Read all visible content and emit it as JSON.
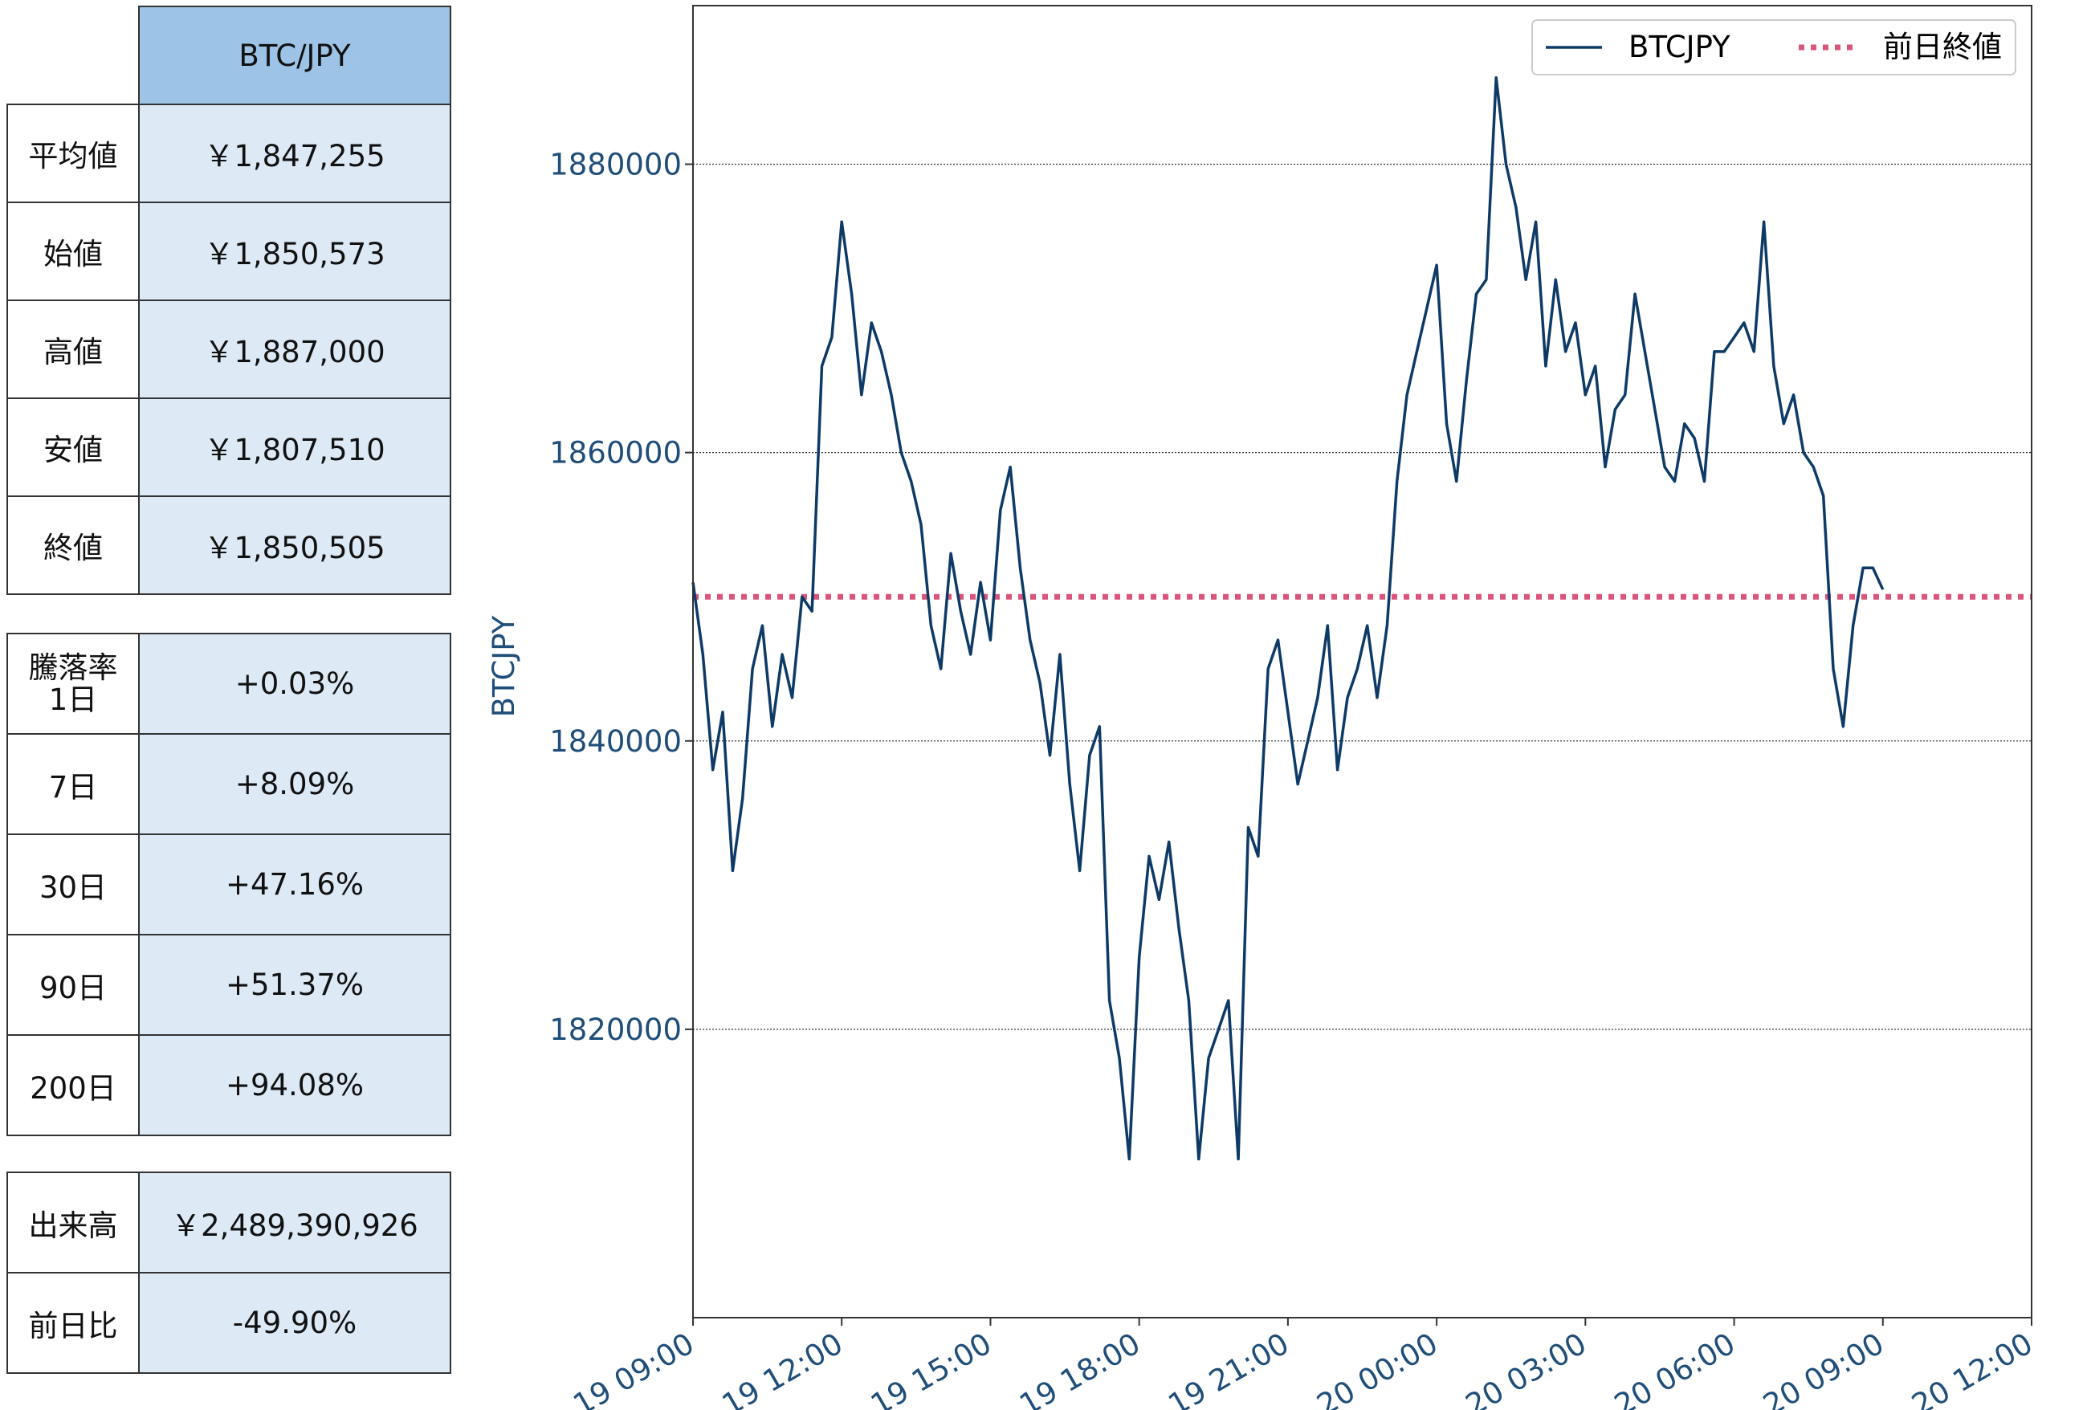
{
  "summary_table": {
    "header": "BTC/JPY",
    "rows": [
      {
        "label": "平均値",
        "value": "￥1,847,255"
      },
      {
        "label": "始値",
        "value": "￥1,850,573"
      },
      {
        "label": "高値",
        "value": "￥1,887,000"
      },
      {
        "label": "安値",
        "value": "￥1,807,510"
      },
      {
        "label": "終値",
        "value": "￥1,850,505"
      }
    ]
  },
  "change_table": {
    "rows": [
      {
        "label": "騰落率",
        "label2": "1日",
        "value": "+0.03%"
      },
      {
        "label": "7日",
        "value": "+8.09%"
      },
      {
        "label": "30日",
        "value": "+47.16%"
      },
      {
        "label": "90日",
        "value": "+51.37%"
      },
      {
        "label": "200日",
        "value": "+94.08%"
      }
    ]
  },
  "volume_table": {
    "rows": [
      {
        "label": "出来高",
        "value": "￥2,489,390,926"
      },
      {
        "label": "前日比",
        "value": "-49.90%"
      }
    ]
  },
  "colors": {
    "series": "#0d3a66",
    "reference": "#d9557a",
    "axis_text": "#1f4e79",
    "grid": "#333333"
  },
  "chart_data": {
    "type": "line",
    "ylabel": "BTCJPY",
    "xlabel": "",
    "x_range_hours": [
      0,
      27
    ],
    "ylim": [
      1800000,
      1891000
    ],
    "yticks": [
      1820000,
      1840000,
      1860000,
      1880000
    ],
    "ytick_labels": [
      "1820000",
      "1840000",
      "1860000",
      "1880000"
    ],
    "xticks_hours": [
      0,
      3,
      6,
      9,
      12,
      15,
      18,
      21,
      24,
      27
    ],
    "xtick_labels": [
      "19 09:00",
      "19 12:00",
      "19 15:00",
      "19 18:00",
      "19 21:00",
      "20 00:00",
      "20 03:00",
      "20 06:00",
      "20 09:00",
      "20 12:00"
    ],
    "grid": "horizontal dotted",
    "legend": {
      "position": "top-right",
      "entries": [
        "BTCJPY",
        "前日終値"
      ]
    },
    "reference_line": {
      "name": "前日終値",
      "value": 1850000
    },
    "series": [
      {
        "name": "BTCJPY",
        "x_hours": [
          0,
          0.2,
          0.4,
          0.6,
          0.8,
          1.0,
          1.2,
          1.4,
          1.6,
          1.8,
          2.0,
          2.2,
          2.4,
          2.6,
          2.8,
          3.0,
          3.2,
          3.4,
          3.6,
          3.8,
          4.0,
          4.2,
          4.4,
          4.6,
          4.8,
          5.0,
          5.2,
          5.4,
          5.6,
          5.8,
          6.0,
          6.2,
          6.4,
          6.6,
          6.8,
          7.0,
          7.2,
          7.4,
          7.6,
          7.8,
          8.0,
          8.2,
          8.4,
          8.6,
          8.8,
          9.0,
          9.2,
          9.4,
          9.6,
          9.8,
          10.0,
          10.2,
          10.4,
          10.6,
          10.8,
          11.0,
          11.2,
          11.4,
          11.6,
          11.8,
          12.0,
          12.2,
          12.4,
          12.6,
          12.8,
          13.0,
          13.2,
          13.4,
          13.6,
          13.8,
          14.0,
          14.2,
          14.4,
          14.6,
          14.8,
          15.0,
          15.2,
          15.4,
          15.6,
          15.8,
          16.0,
          16.2,
          16.4,
          16.6,
          16.8,
          17.0,
          17.2,
          17.4,
          17.6,
          17.8,
          18.0,
          18.2,
          18.4,
          18.6,
          18.8,
          19.0,
          19.2,
          19.4,
          19.6,
          19.8,
          20.0,
          20.2,
          20.4,
          20.6,
          20.8,
          21.0,
          21.2,
          21.4,
          21.6,
          21.8,
          22.0,
          22.2,
          22.4,
          22.6,
          22.8,
          23.0,
          23.2,
          23.4,
          23.6,
          23.8,
          24.0
        ],
        "values": [
          1851000,
          1846000,
          1838000,
          1842000,
          1831000,
          1836000,
          1845000,
          1848000,
          1841000,
          1846000,
          1843000,
          1850000,
          1849000,
          1866000,
          1868000,
          1876000,
          1871000,
          1864000,
          1869000,
          1867000,
          1864000,
          1860000,
          1858000,
          1855000,
          1848000,
          1845000,
          1853000,
          1849000,
          1846000,
          1851000,
          1847000,
          1856000,
          1859000,
          1852000,
          1847000,
          1844000,
          1839000,
          1846000,
          1837000,
          1831000,
          1839000,
          1841000,
          1822000,
          1818000,
          1811000,
          1825000,
          1832000,
          1829000,
          1833000,
          1827000,
          1822000,
          1811000,
          1818000,
          1820000,
          1822000,
          1811000,
          1834000,
          1832000,
          1845000,
          1847000,
          1842000,
          1837000,
          1840000,
          1843000,
          1848000,
          1838000,
          1843000,
          1845000,
          1848000,
          1843000,
          1848000,
          1858000,
          1864000,
          1867000,
          1870000,
          1873000,
          1862000,
          1858000,
          1865000,
          1871000,
          1872000,
          1886000,
          1880000,
          1877000,
          1872000,
          1876000,
          1866000,
          1872000,
          1867000,
          1869000,
          1864000,
          1866000,
          1859000,
          1863000,
          1864000,
          1871000,
          1867000,
          1863000,
          1859000,
          1858000,
          1862000,
          1861000,
          1858000,
          1867000,
          1867000,
          1868000,
          1869000,
          1867000,
          1876000,
          1866000,
          1862000,
          1864000,
          1860000,
          1859000,
          1857000,
          1845000,
          1841000,
          1848000,
          1852000,
          1852000,
          1850500
        ]
      }
    ]
  }
}
